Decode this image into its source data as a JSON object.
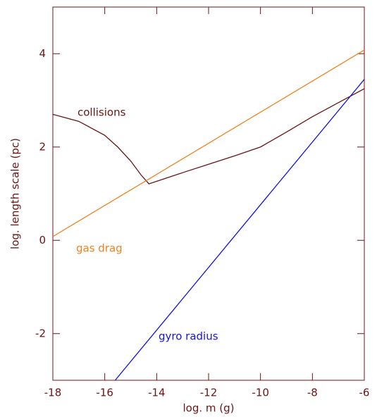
{
  "chart_data": {
    "type": "line",
    "x_label": "log. m (g)",
    "y_label": "log. length scale (pc)",
    "xlim": [
      -18,
      -6
    ],
    "xticks": [
      -18,
      -16,
      -14,
      -12,
      -10,
      -8,
      -6
    ],
    "ylim": [
      -3,
      5
    ],
    "yticks": [
      -2,
      0,
      2,
      4
    ],
    "axis_color": "#6b1414",
    "series": [
      {
        "name": "collisions",
        "color": "#6b1414",
        "x": [
          -18,
          -17,
          -16,
          -15.5,
          -15,
          -14.6,
          -14.3,
          -13,
          -12,
          -11,
          -10,
          -9,
          -8,
          -7,
          -6
        ],
        "values": [
          2.7,
          2.55,
          2.25,
          2.0,
          1.7,
          1.4,
          1.21,
          1.45,
          1.63,
          1.81,
          2.0,
          2.32,
          2.65,
          2.95,
          3.25
        ]
      },
      {
        "name": "gas drag",
        "color": "#f0821e",
        "x": [
          -18,
          -6
        ],
        "values": [
          0.08,
          4.08
        ]
      },
      {
        "name": "gyro radius",
        "color": "#1414e0",
        "x": [
          -15.6,
          -6
        ],
        "values": [
          -3,
          3.45
        ]
      }
    ]
  }
}
